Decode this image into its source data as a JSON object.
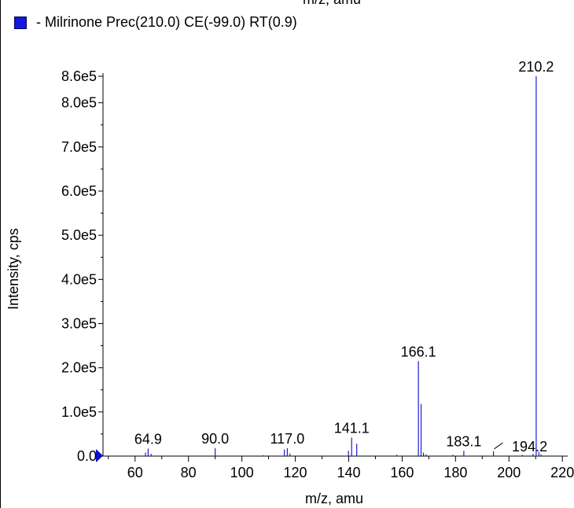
{
  "top_clipped_label": "m/z, amu",
  "legend": {
    "text": "- Milrinone Prec(210.0) CE(-99.0) RT(0.9)",
    "color": "#1616dc"
  },
  "chart_data": {
    "type": "bar",
    "title": "",
    "xlabel": "m/z, amu",
    "ylabel": "Intensity, cps",
    "xlim": [
      48,
      222
    ],
    "ylim": [
      0,
      860000
    ],
    "grid": false,
    "series_color": "#1c1ccf",
    "xticks": [
      {
        "v": 60,
        "label": "60"
      },
      {
        "v": 80,
        "label": "80"
      },
      {
        "v": 100,
        "label": "100"
      },
      {
        "v": 120,
        "label": "120"
      },
      {
        "v": 140,
        "label": "140"
      },
      {
        "v": 160,
        "label": "160"
      },
      {
        "v": 180,
        "label": "180"
      },
      {
        "v": 200,
        "label": "200"
      },
      {
        "v": 220,
        "label": "220"
      }
    ],
    "yticks": [
      {
        "v": 0,
        "label": "0.0"
      },
      {
        "v": 100000,
        "label": "1.0e5"
      },
      {
        "v": 200000,
        "label": "2.0e5"
      },
      {
        "v": 300000,
        "label": "3.0e5"
      },
      {
        "v": 400000,
        "label": "4.0e5"
      },
      {
        "v": 500000,
        "label": "5.0e5"
      },
      {
        "v": 600000,
        "label": "6.0e5"
      },
      {
        "v": 700000,
        "label": "7.0e5"
      },
      {
        "v": 800000,
        "label": "8.0e5"
      },
      {
        "v": 860000,
        "label": "8.6e5"
      }
    ],
    "peaks": [
      {
        "mz": 63.9,
        "intensity": 8000
      },
      {
        "mz": 64.9,
        "intensity": 17000,
        "label": "64.9"
      },
      {
        "mz": 66.0,
        "intensity": 5000
      },
      {
        "mz": 90.0,
        "intensity": 18000,
        "label": "90.0"
      },
      {
        "mz": 108.0,
        "intensity": 2000
      },
      {
        "mz": 115.9,
        "intensity": 15000
      },
      {
        "mz": 117.0,
        "intensity": 18000,
        "label": "117.0"
      },
      {
        "mz": 118.0,
        "intensity": 6000
      },
      {
        "mz": 139.9,
        "intensity": 12000
      },
      {
        "mz": 141.1,
        "intensity": 42000,
        "label": "141.1"
      },
      {
        "mz": 143.0,
        "intensity": 28000
      },
      {
        "mz": 158.0,
        "intensity": 3000
      },
      {
        "mz": 166.1,
        "intensity": 215000,
        "label": "166.1"
      },
      {
        "mz": 167.1,
        "intensity": 118000
      },
      {
        "mz": 168.0,
        "intensity": 8000
      },
      {
        "mz": 169.0,
        "intensity": 4000
      },
      {
        "mz": 179.0,
        "intensity": 3000
      },
      {
        "mz": 183.1,
        "intensity": 12000,
        "label": "183.1"
      },
      {
        "mz": 194.2,
        "intensity": 11000,
        "label": "194.2"
      },
      {
        "mz": 205.0,
        "intensity": 3000
      },
      {
        "mz": 209.0,
        "intensity": 5000
      },
      {
        "mz": 210.2,
        "intensity": 860000,
        "label": "210.2"
      },
      {
        "mz": 211.2,
        "intensity": 9000
      },
      {
        "mz": 212.0,
        "intensity": 4000
      }
    ]
  }
}
